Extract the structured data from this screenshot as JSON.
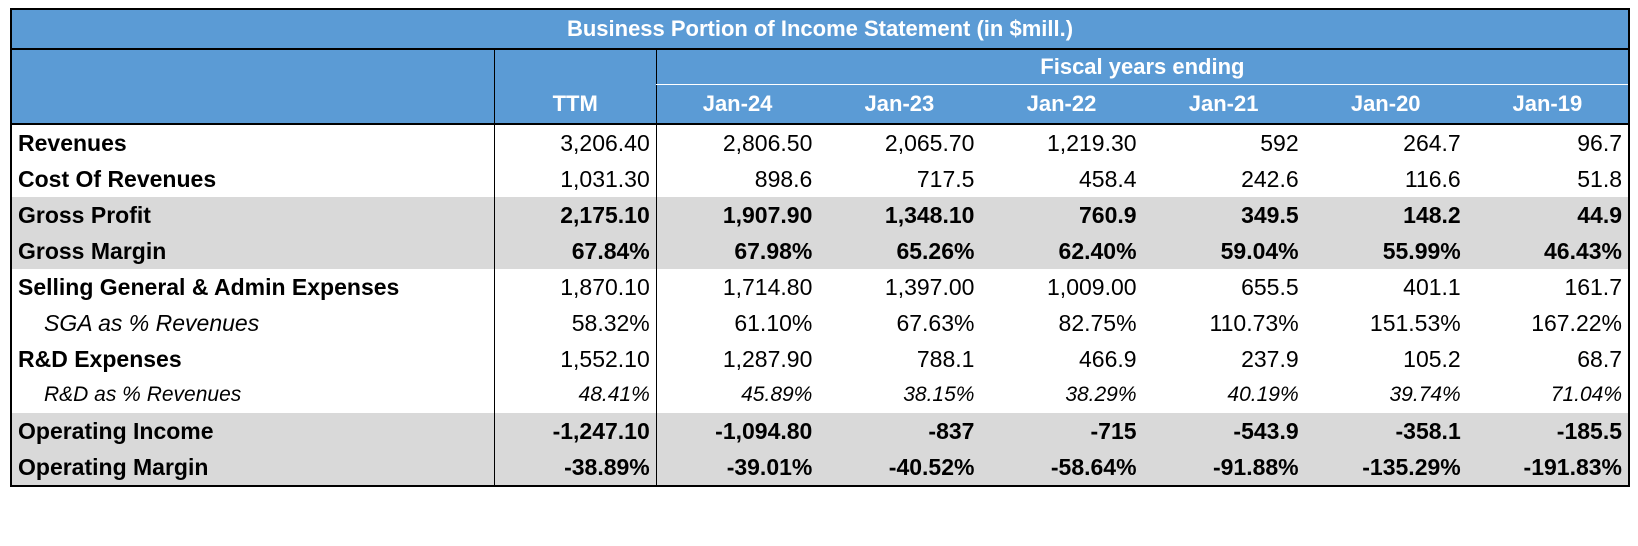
{
  "title": "Business Portion of Income Statement  (in $mill.)",
  "fiscal_header": "Fiscal years ending",
  "columns": [
    "TTM",
    "Jan-24",
    "Jan-23",
    "Jan-22",
    "Jan-21",
    "Jan-20",
    "Jan-19"
  ],
  "rows": [
    {
      "label": "Revenues",
      "values": [
        "3,206.40",
        "2,806.50",
        "2,065.70",
        "1,219.30",
        "592",
        "264.7",
        "96.7"
      ]
    },
    {
      "label": "Cost Of Revenues",
      "values": [
        "1,031.30",
        "898.6",
        "717.5",
        "458.4",
        "242.6",
        "116.6",
        "51.8"
      ]
    },
    {
      "label": "Gross Profit",
      "values": [
        "2,175.10",
        "1,907.90",
        "1,348.10",
        "760.9",
        "349.5",
        "148.2",
        "44.9"
      ]
    },
    {
      "label": "Gross Margin",
      "values": [
        "67.84%",
        "67.98%",
        "65.26%",
        "62.40%",
        "59.04%",
        "55.99%",
        "46.43%"
      ]
    },
    {
      "label": "Selling General & Admin Expenses",
      "values": [
        "1,870.10",
        "1,714.80",
        "1,397.00",
        "1,009.00",
        "655.5",
        "401.1",
        "161.7"
      ]
    },
    {
      "label": "SGA as % Revenues",
      "values": [
        "58.32%",
        "61.10%",
        "67.63%",
        "82.75%",
        "110.73%",
        "151.53%",
        "167.22%"
      ]
    },
    {
      "label": "R&D Expenses",
      "values": [
        "1,552.10",
        "1,287.90",
        "788.1",
        "466.9",
        "237.9",
        "105.2",
        "68.7"
      ]
    },
    {
      "label": "R&D as % Revenues",
      "values": [
        "48.41%",
        "45.89%",
        "38.15%",
        "38.29%",
        "40.19%",
        "39.74%",
        "71.04%"
      ]
    },
    {
      "label": "Operating Income",
      "values": [
        "-1,247.10",
        "-1,094.80",
        "-837",
        "-715",
        "-543.9",
        "-358.1",
        "-185.5"
      ]
    },
    {
      "label": "Operating Margin",
      "values": [
        "-38.89%",
        "-39.01%",
        "-40.52%",
        "-58.64%",
        "-91.88%",
        "-135.29%",
        "-191.83%"
      ]
    }
  ],
  "colors": {
    "header_blue": "#5b9bd5",
    "gray_band": "#d9d9d9"
  }
}
